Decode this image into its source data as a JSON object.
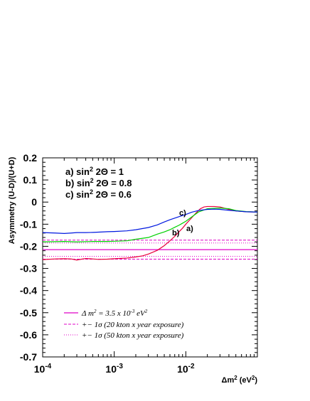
{
  "chart_data": {
    "type": "line",
    "xscale": "log",
    "xlim": [
      0.0001,
      0.1
    ],
    "ylim": [
      -0.7,
      0.2
    ],
    "grid": false,
    "xlabel": "Δm² (eV²)",
    "ylabel": "Asymmetry (U-D)/(U+D)",
    "xticks": [
      {
        "value": 0.0001,
        "base": "10",
        "exp": "-4"
      },
      {
        "value": 0.001,
        "base": "10",
        "exp": "-3"
      },
      {
        "value": 0.01,
        "base": "10",
        "exp": "-2"
      }
    ],
    "yticks": [
      "0.2",
      "0.1",
      "0",
      "-0.1",
      "-0.2",
      "-0.3",
      "-0.4",
      "-0.5",
      "-0.6",
      "-0.7"
    ],
    "annotation_lines": [
      "a) sin² 2Θ = 1",
      "b) sin² 2Θ = 0.8",
      "c) sin² 2Θ = 0.6"
    ],
    "series": [
      {
        "name": "a)",
        "color": "#e8003c",
        "points": [
          [
            0.0001,
            -0.26
          ],
          [
            0.00015,
            -0.257
          ],
          [
            0.0002,
            -0.256
          ],
          [
            0.00025,
            -0.257
          ],
          [
            0.0003,
            -0.262
          ],
          [
            0.00035,
            -0.258
          ],
          [
            0.0004,
            -0.255
          ],
          [
            0.0005,
            -0.257
          ],
          [
            0.0006,
            -0.259
          ],
          [
            0.0008,
            -0.258
          ],
          [
            0.001,
            -0.256
          ],
          [
            0.0015,
            -0.253
          ],
          [
            0.002,
            -0.248
          ],
          [
            0.0025,
            -0.243
          ],
          [
            0.003,
            -0.235
          ],
          [
            0.004,
            -0.218
          ],
          [
            0.005,
            -0.197
          ],
          [
            0.006,
            -0.175
          ],
          [
            0.007,
            -0.155
          ],
          [
            0.008,
            -0.135
          ],
          [
            0.009,
            -0.118
          ],
          [
            0.01,
            -0.1
          ],
          [
            0.012,
            -0.072
          ],
          [
            0.014,
            -0.048
          ],
          [
            0.016,
            -0.03
          ],
          [
            0.018,
            -0.022
          ],
          [
            0.02,
            -0.02
          ],
          [
            0.025,
            -0.02
          ],
          [
            0.03,
            -0.022
          ],
          [
            0.04,
            -0.033
          ],
          [
            0.05,
            -0.04
          ],
          [
            0.07,
            -0.044
          ],
          [
            0.1,
            -0.045
          ]
        ]
      },
      {
        "name": "b)",
        "color": "#00d100",
        "points": [
          [
            0.0001,
            -0.18
          ],
          [
            0.0002,
            -0.178
          ],
          [
            0.0003,
            -0.18
          ],
          [
            0.0005,
            -0.178
          ],
          [
            0.0008,
            -0.178
          ],
          [
            0.001,
            -0.177
          ],
          [
            0.0015,
            -0.175
          ],
          [
            0.002,
            -0.168
          ],
          [
            0.003,
            -0.16
          ],
          [
            0.004,
            -0.145
          ],
          [
            0.005,
            -0.135
          ],
          [
            0.006,
            -0.125
          ],
          [
            0.007,
            -0.114
          ],
          [
            0.008,
            -0.105
          ],
          [
            0.01,
            -0.087
          ],
          [
            0.012,
            -0.068
          ],
          [
            0.015,
            -0.045
          ],
          [
            0.02,
            -0.03
          ],
          [
            0.025,
            -0.028
          ],
          [
            0.03,
            -0.027
          ],
          [
            0.04,
            -0.03
          ],
          [
            0.05,
            -0.038
          ],
          [
            0.07,
            -0.043
          ],
          [
            0.1,
            -0.045
          ]
        ]
      },
      {
        "name": "c)",
        "color": "#0018e0",
        "points": [
          [
            0.0001,
            -0.138
          ],
          [
            0.00015,
            -0.14
          ],
          [
            0.0002,
            -0.142
          ],
          [
            0.00025,
            -0.14
          ],
          [
            0.0003,
            -0.138
          ],
          [
            0.0004,
            -0.138
          ],
          [
            0.0005,
            -0.137
          ],
          [
            0.0006,
            -0.136
          ],
          [
            0.0008,
            -0.134
          ],
          [
            0.001,
            -0.133
          ],
          [
            0.0015,
            -0.13
          ],
          [
            0.002,
            -0.125
          ],
          [
            0.003,
            -0.115
          ],
          [
            0.004,
            -0.103
          ],
          [
            0.005,
            -0.09
          ],
          [
            0.006,
            -0.08
          ],
          [
            0.008,
            -0.066
          ],
          [
            0.01,
            -0.056
          ],
          [
            0.012,
            -0.046
          ],
          [
            0.015,
            -0.038
          ],
          [
            0.02,
            -0.033
          ],
          [
            0.025,
            -0.032
          ],
          [
            0.03,
            -0.033
          ],
          [
            0.04,
            -0.037
          ],
          [
            0.05,
            -0.04
          ],
          [
            0.07,
            -0.044
          ],
          [
            0.1,
            -0.045
          ]
        ]
      }
    ],
    "reference_lines": [
      {
        "y": -0.215,
        "style": "solid",
        "color": "#e000c8"
      },
      {
        "y": -0.172,
        "style": "dashed",
        "color": "#e000c8"
      },
      {
        "y": -0.258,
        "style": "dashed",
        "color": "#e000c8"
      },
      {
        "y": -0.185,
        "style": "dotted",
        "color": "#e000c8"
      },
      {
        "y": -0.245,
        "style": "dotted",
        "color": "#e000c8"
      }
    ],
    "legend": {
      "placement": "bottom-left",
      "entries": [
        {
          "style": "solid",
          "text": "Δ m² = 3.5 x 10⁻³ eV²"
        },
        {
          "style": "dashed",
          "text": "+− 1σ (20 kton x year exposure)"
        },
        {
          "style": "dotted",
          "text": "+− 1σ (50 kton x year exposure)"
        }
      ]
    }
  }
}
